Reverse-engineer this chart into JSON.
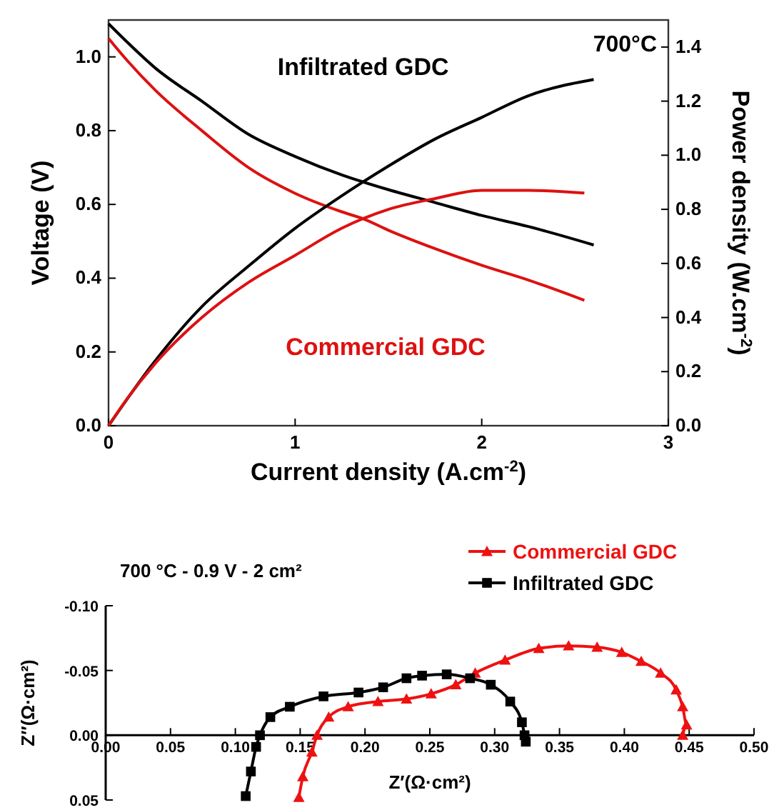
{
  "chart_data": [
    {
      "type": "line",
      "xlabel": "Current density (A.cm$^{-2}$)",
      "ylabel": "Voltage (V)",
      "y2label": "Power density (W.cm$^{-2}$)",
      "annotations": [
        "700°C"
      ],
      "xlim": [
        0,
        3
      ],
      "xticks": [
        0,
        1,
        2,
        3
      ],
      "ylim": [
        0,
        1.1
      ],
      "yticks": [
        {
          "value": 0,
          "label": "0.0"
        },
        {
          "value": 0.2,
          "label": "0.2"
        },
        {
          "value": 0.4,
          "label": "0.4"
        },
        {
          "value": 0.6,
          "label": "0.6"
        },
        {
          "value": 0.8,
          "label": "0.8"
        },
        {
          "value": 1,
          "label": "1.0"
        }
      ],
      "y2lim": [
        0,
        1.5
      ],
      "y2ticks": [
        {
          "value": 0,
          "label": "0.0"
        },
        {
          "value": 0.2,
          "label": "0.2"
        },
        {
          "value": 0.4,
          "label": "0.4"
        },
        {
          "value": 0.6,
          "label": "0.6"
        },
        {
          "value": 0.8,
          "label": "0.8"
        },
        {
          "value": 1,
          "label": "1.0"
        },
        {
          "value": 1.2,
          "label": "1.2"
        },
        {
          "value": 1.4,
          "label": "1.4"
        }
      ],
      "grid": false,
      "legend": false,
      "series": [
        {
          "name": "Infiltrated GDC",
          "color": "#000000",
          "x": [
            0,
            0.1,
            0.25,
            0.5,
            0.75,
            1,
            1.25,
            1.5,
            1.75,
            2,
            2.25,
            2.6
          ],
          "values": [
            1.09,
            1.04,
            0.97,
            0.88,
            0.79,
            0.73,
            0.68,
            0.64,
            0.605,
            0.57,
            0.54,
            0.49
          ]
        },
        {
          "name": "Commercial GDC",
          "color": "#dd1111",
          "x": [
            0,
            0.1,
            0.25,
            0.5,
            0.75,
            1,
            1.25,
            1.37,
            1.5,
            1.75,
            2,
            2.25,
            2.55
          ],
          "values": [
            1.05,
            0.99,
            0.91,
            0.8,
            0.7,
            0.63,
            0.58,
            0.56,
            0.53,
            0.48,
            0.435,
            0.395,
            0.34
          ]
        },
        {
          "color": "#000000",
          "axis": "y2",
          "x": [
            0,
            0.25,
            0.5,
            0.75,
            1,
            1.25,
            1.5,
            1.75,
            2,
            2.25,
            2.6
          ],
          "values": [
            0,
            0.24,
            0.44,
            0.59,
            0.73,
            0.85,
            0.96,
            1.06,
            1.14,
            1.22,
            1.28
          ]
        },
        {
          "color": "#dd1111",
          "axis": "y2",
          "x": [
            0,
            0.1,
            0.25,
            0.5,
            0.75,
            1,
            1.25,
            1.5,
            1.75,
            2,
            2.25,
            2.55
          ],
          "values": [
            0,
            0.1,
            0.23,
            0.4,
            0.53,
            0.63,
            0.73,
            0.8,
            0.84,
            0.87,
            0.87,
            0.86
          ]
        }
      ]
    },
    {
      "type": "line",
      "xlabel": "Z′(Ω·cm²)",
      "ylabel": "Z″(Ω·cm²)",
      "annotations": [
        "700 °C - 0.9 V - 2 cm²"
      ],
      "xlim": [
        0,
        0.5
      ],
      "xticks": [
        {
          "value": 0,
          "label": "0.00"
        },
        {
          "value": 0.05,
          "label": "0.05"
        },
        {
          "value": 0.1,
          "label": "0.10"
        },
        {
          "value": 0.15,
          "label": "0.15"
        },
        {
          "value": 0.2,
          "label": "0.20"
        },
        {
          "value": 0.25,
          "label": "0.25"
        },
        {
          "value": 0.3,
          "label": "0.30"
        },
        {
          "value": 0.35,
          "label": "0.35"
        },
        {
          "value": 0.4,
          "label": "0.40"
        },
        {
          "value": 0.45,
          "label": "0.45"
        },
        {
          "value": 0.5,
          "label": "0.50"
        }
      ],
      "ylim": [
        0.05,
        -0.1
      ],
      "yticks": [
        {
          "value": -0.1,
          "label": "-0.10"
        },
        {
          "value": -0.05,
          "label": "-0.05"
        },
        {
          "value": 0,
          "label": "0.00"
        },
        {
          "value": 0.05,
          "label": "0.05"
        }
      ],
      "grid": false,
      "legend": "top right",
      "series": [
        {
          "name": "Commercial GDC",
          "color": "#ee1111",
          "marker": "triangle",
          "x": [
            0.149,
            0.152,
            0.159,
            0.163,
            0.172,
            0.187,
            0.21,
            0.232,
            0.251,
            0.27,
            0.285,
            0.308,
            0.334,
            0.357,
            0.379,
            0.398,
            0.413,
            0.428,
            0.44,
            0.445,
            0.448,
            0.445
          ],
          "values": [
            0.048,
            0.032,
            0.013,
            0,
            -0.014,
            -0.022,
            -0.026,
            -0.028,
            -0.032,
            -0.039,
            -0.048,
            -0.058,
            -0.067,
            -0.069,
            -0.068,
            -0.064,
            -0.057,
            -0.048,
            -0.035,
            -0.022,
            -0.008,
            0
          ]
        },
        {
          "name": "Infiltrated GDC",
          "color": "#000000",
          "marker": "square",
          "x": [
            0.108,
            0.112,
            0.116,
            0.119,
            0.127,
            0.142,
            0.168,
            0.195,
            0.214,
            0.232,
            0.244,
            0.263,
            0.281,
            0.297,
            0.312,
            0.321,
            0.323,
            0.324
          ],
          "values": [
            0.047,
            0.028,
            0.009,
            0,
            -0.014,
            -0.022,
            -0.03,
            -0.033,
            -0.037,
            -0.044,
            -0.046,
            -0.047,
            -0.044,
            -0.039,
            -0.026,
            -0.01,
            0,
            0.005
          ]
        }
      ]
    }
  ]
}
